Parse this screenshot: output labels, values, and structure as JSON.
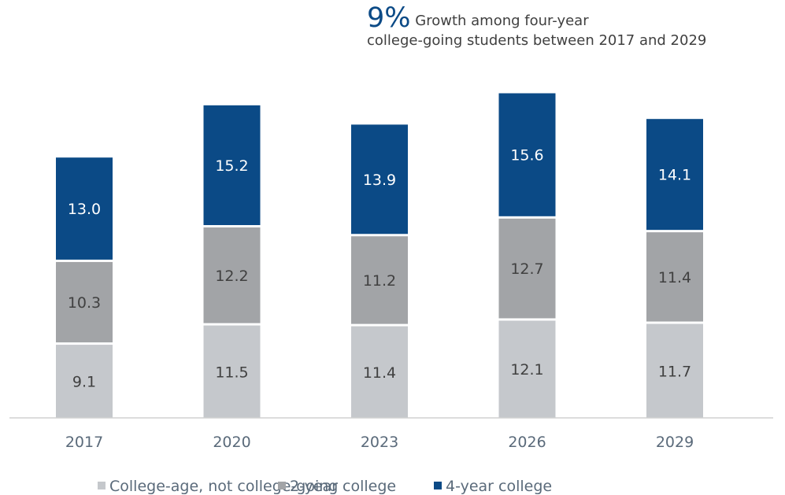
{
  "headline": {
    "highlight": "9%",
    "text_line1": "Growth among four-year",
    "text_line2": "college-going students between 2017 and 2029"
  },
  "colors": {
    "not_college_going": "#c5c8cc",
    "two_year": "#a2a4a7",
    "four_year": "#0b4a86",
    "axis": "#d0d0d0",
    "label_dark": "#404040",
    "label_light": "#ffffff"
  },
  "chart_data": {
    "type": "bar",
    "stacked": true,
    "categories": [
      "2017",
      "2020",
      "2023",
      "2026",
      "2029"
    ],
    "series": [
      {
        "name": "College-age, not college-going",
        "values": [
          9.1,
          11.5,
          11.4,
          12.1,
          11.7
        ]
      },
      {
        "name": "2-year college",
        "values": [
          10.3,
          12.2,
          11.2,
          12.7,
          11.4
        ]
      },
      {
        "name": "4-year college",
        "values": [
          13.0,
          15.2,
          13.9,
          15.6,
          14.1
        ]
      }
    ],
    "title": "",
    "xlabel": "",
    "ylabel": "",
    "data_labels": true,
    "legend_position": "bottom",
    "grid": false
  }
}
